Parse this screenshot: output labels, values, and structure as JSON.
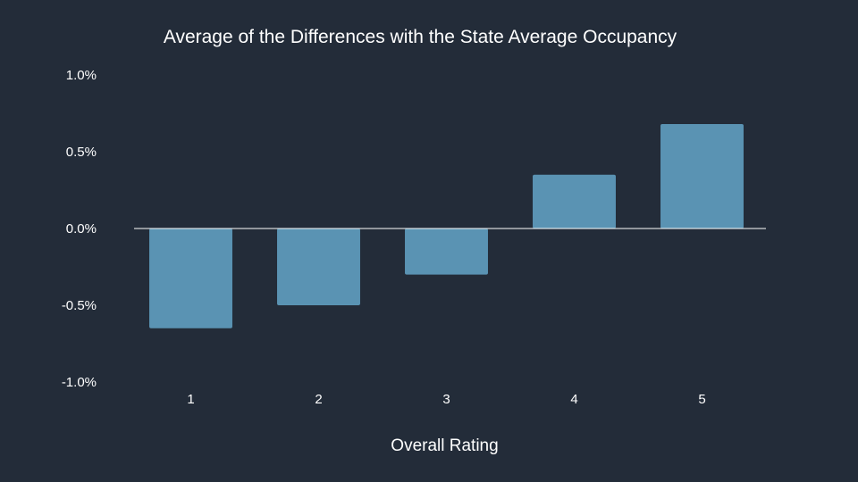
{
  "chart_data": {
    "type": "bar",
    "title": "Average of the Differences with the State Average Occupancy",
    "xlabel": "Overall Rating",
    "ylabel": "",
    "categories": [
      "1",
      "2",
      "3",
      "4",
      "5"
    ],
    "values": [
      -0.65,
      -0.5,
      -0.3,
      0.35,
      0.68
    ],
    "value_unit": "%",
    "ylim": [
      -1.0,
      1.0
    ],
    "yticks": [
      1.0,
      0.5,
      0.0,
      -0.5,
      -1.0
    ],
    "ytick_labels": [
      "1.0%",
      "0.5%",
      "0.0%",
      "-0.5%",
      "-1.0%"
    ],
    "grid": false,
    "legend": "none",
    "zero_line": true,
    "colors": {
      "background": "#232c39",
      "bar": "#5a93b3",
      "text": "#ffffff",
      "zero_line": "#ffffff"
    }
  }
}
